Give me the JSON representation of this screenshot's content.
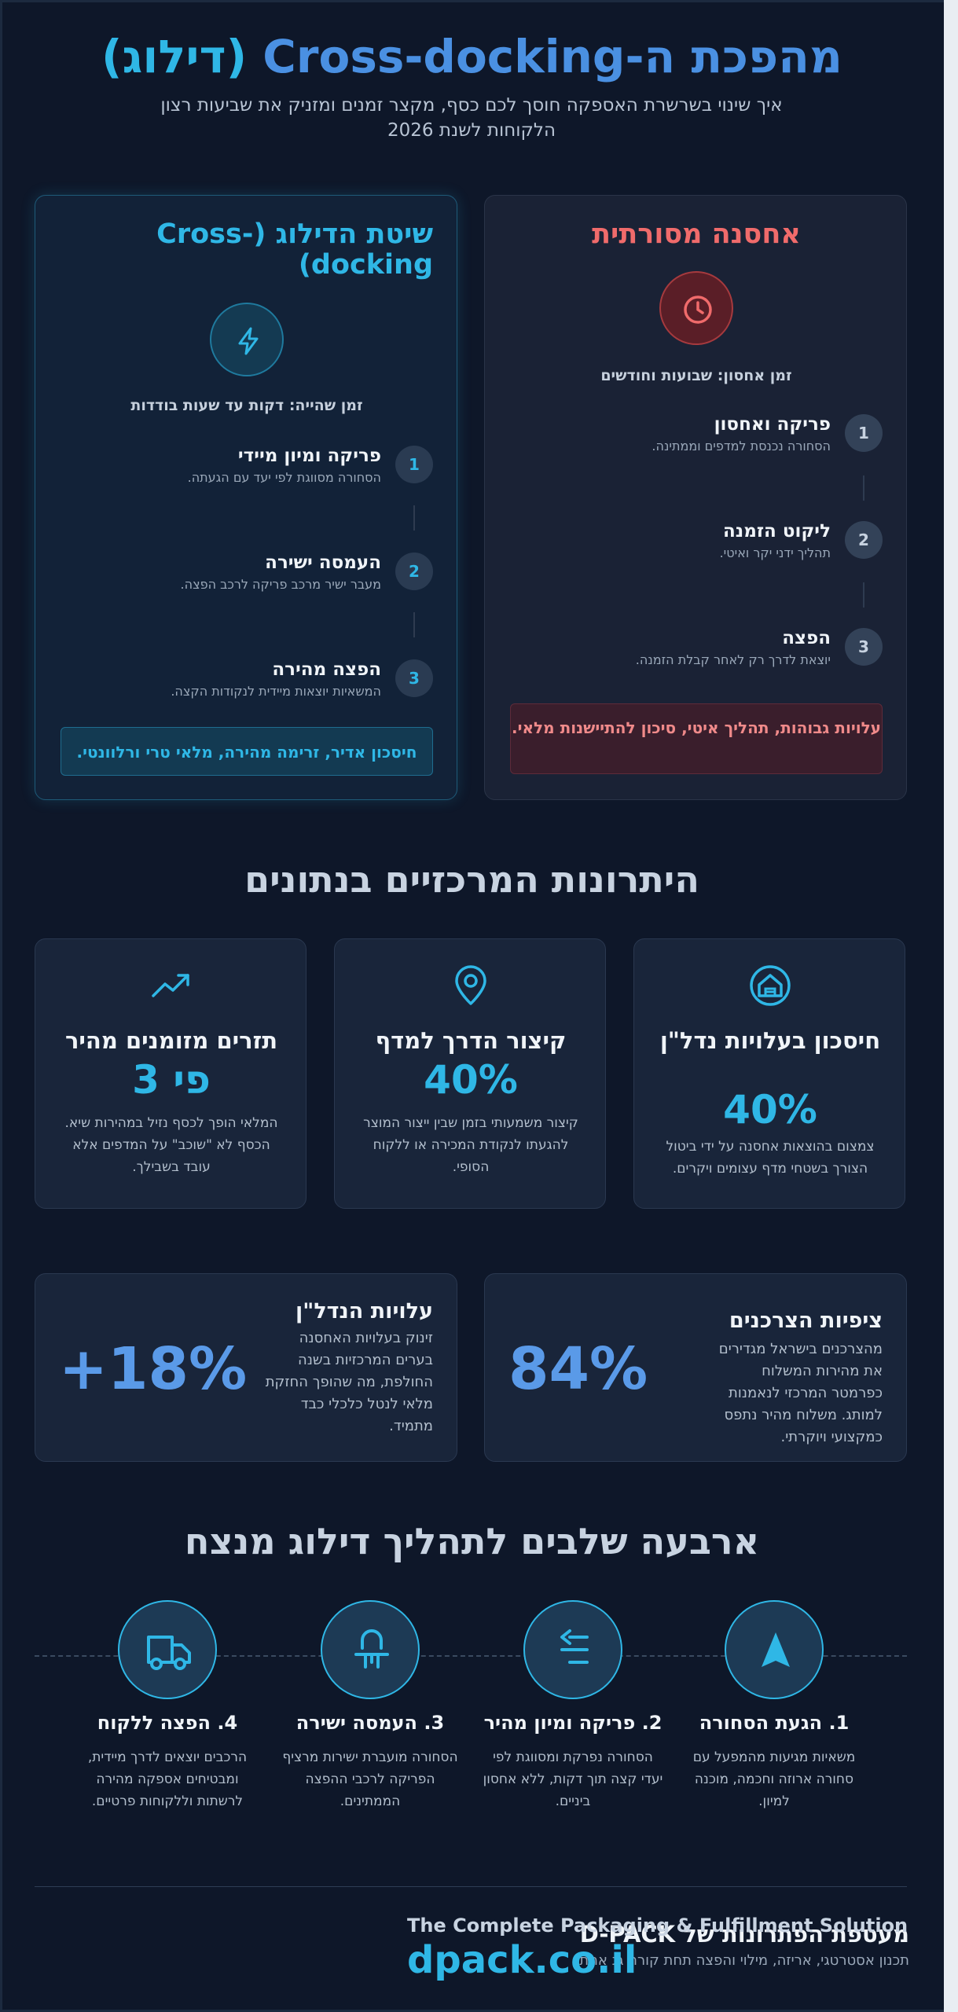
{
  "header": {
    "title_part1": "מהפכת ה-Cross-docking",
    "title_part2": "(דילוג)",
    "subtitle": "איך שינוי בשרשרת האספקה חוסך לכם כסף, מקצר זמנים ומזניק את שביעות רצון הלקוחות לשנת 2026"
  },
  "traditional": {
    "title": "אחסנה מסורתית",
    "icon": "clock-icon",
    "time": "זמן אחסון: שבועות וחודשים",
    "steps": [
      {
        "num": "1",
        "title": "פריקה ואחסון",
        "desc": "הסחורה נכנסת למדפים וממתינה."
      },
      {
        "num": "2",
        "title": "ליקוט הזמנה",
        "desc": "תהליך ידני יקר ואיטי."
      },
      {
        "num": "3",
        "title": "הפצה",
        "desc": "יוצאת לדרך רק לאחר קבלת הזמנה."
      }
    ],
    "note": "עלויות גבוהות, תהליך איטי, סיכון להתיישנות מלאי."
  },
  "crossdocking": {
    "title": "שיטת הדילוג (Cross-docking)",
    "icon": "lightning-icon",
    "time": "זמן שהייה: דקות עד שעות בודדות",
    "steps": [
      {
        "num": "1",
        "title": "פריקה ומיון מיידי",
        "desc": "הסחורה מסווגת לפי יעד עם הגעתה."
      },
      {
        "num": "2",
        "title": "העמסה ישירה",
        "desc": "מעבר ישיר מרכב פריקה לרכב הפצה."
      },
      {
        "num": "3",
        "title": "הפצה מהירה",
        "desc": "המשאיות יוצאות מיידית לנקודות הקצה."
      }
    ],
    "note": "חיסכון אדיר, זרימה מהירה, מלאי טרי ורלוונטי."
  },
  "advantages": {
    "title": "היתרונות המרכזיים בנתונים",
    "cards": [
      {
        "icon": "warehouse-icon",
        "title": "חיסכון בעלויות נדל\"ן",
        "value": "40%",
        "desc": "צמצום בהוצאות אחסנה על ידי ביטול הצורך בשטחי מדף עצומים ויקרים."
      },
      {
        "icon": "map-pin-icon",
        "title": "קיצור הדרך למדף",
        "value": "40%",
        "desc": "קיצור משמעותי בזמן שבין ייצור המוצר להגעתו לנקודת המכירה או ללקוח הסופי."
      },
      {
        "icon": "trending-up-icon",
        "title": "תזרים מזומנים מהיר",
        "value": "פי 3",
        "desc": "המלאי הופך לכסף נזיל במהירות שיא. הכסף לא \"שוכב\" על המדפים אלא עובד בשבילך."
      }
    ]
  },
  "wide_stats": [
    {
      "value": "84%",
      "title": "ציפיות הצרכנים",
      "desc": "מהצרכנים בישראל מגדירים את מהירות המשלוח כפרמטר המרכזי לנאמנות למותג. משלוח מהיר נתפס כמקצועי ויוקרתי."
    },
    {
      "value": "+18%",
      "title": "עלויות הנדל\"ן",
      "desc": "זינוק בעלויות האחסנה בערים המרכזיות בשנה החולפת, מה שהופך החזקת מלאי לנטל כלכלי כבד מתמיד."
    }
  ],
  "process": {
    "title": "ארבעה שלבים לתהליך דילוג מנצח",
    "steps": [
      {
        "icon": "arrival-icon",
        "title": "1. הגעת הסחורה",
        "desc": "משאיות מגיעות מהמפעל עם סחורה ארוזה וחכמה, מוכנה למיון."
      },
      {
        "icon": "sorting-icon",
        "title": "2. פריקה ומיון מהיר",
        "desc": "הסחורה נפרקת ומסווגת לפי יעדי קצה תוך דקות, ללא אחסון ביניים."
      },
      {
        "icon": "transfer-icon",
        "title": "3. העמסה ישירה",
        "desc": "הסחורה מועברת ישירות מרציף הפריקה לרכבי ההפצה הממתינים."
      },
      {
        "icon": "truck-icon",
        "title": "4. הפצה ללקוח",
        "desc": "הרכבים יוצאים לדרך מיידית, ומבטיחים אספקה מהירה לרשתות וללקוחות פרטיים."
      }
    ]
  },
  "footer": {
    "title": "מעטפת הפתרונות של D-PACK",
    "subtitle": "תכנון אסטרטגי, אריזה, מילוי והפצה תחת קורת גג אחת.",
    "tagline": "The Complete Packaging & Fulfillment Solution",
    "url": "dpack.co.il"
  },
  "colors": {
    "background": "#0e1729",
    "accent": "#2fb7e6",
    "accent_blue": "#4a90e2",
    "warning": "#f06b6b"
  }
}
